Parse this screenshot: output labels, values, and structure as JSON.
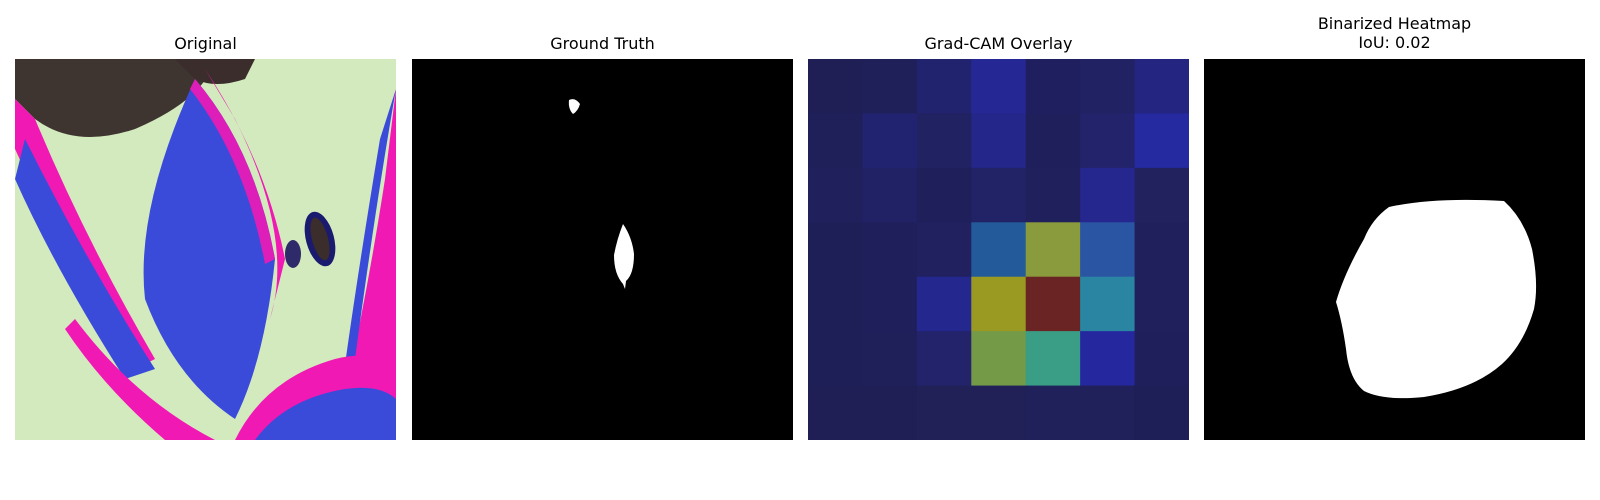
{
  "panels": [
    {
      "id": "original",
      "title": "Original"
    },
    {
      "id": "ground-truth",
      "title": "Ground Truth"
    },
    {
      "id": "gradcam",
      "title": "Grad-CAM Overlay"
    },
    {
      "id": "binarized",
      "title": "Binarized Heatmap",
      "subtitle": "IoU: 0.02"
    }
  ],
  "gradcam_grid": [
    [
      "#1f1f55",
      "#1f1f5a",
      "#22236e",
      "#252794",
      "#1f1f60",
      "#212263",
      "#232580"
    ],
    [
      "#1f1f5a",
      "#222370",
      "#212261",
      "#24268a",
      "#1f1f5c",
      "#22236a",
      "#262aa0"
    ],
    [
      "#20205c",
      "#212266",
      "#1f1f5c",
      "#222266",
      "#20205c",
      "#25278e",
      "#22225f"
    ],
    [
      "#1f1f58",
      "#1f1f5c",
      "#212160",
      "#225a9a",
      "#899b3c",
      "#2a55a3",
      "#20205c"
    ],
    [
      "#1f1f58",
      "#1f1f5c",
      "#24278e",
      "#9a9a22",
      "#6a2424",
      "#2a85a2",
      "#20205c"
    ],
    [
      "#1f1f58",
      "#1f1f5a",
      "#22236a",
      "#749a48",
      "#3a9e86",
      "#25279e",
      "#1f1f5c"
    ],
    [
      "#1f1f55",
      "#1f1f55",
      "#212158",
      "#212158",
      "#20205a",
      "#20205a",
      "#1f1f58"
    ]
  ],
  "colors": {
    "leaf_blue": "#3a4bd9",
    "magenta": "#f019b4",
    "light_green": "#d6edc0",
    "mask_white": "#ffffff",
    "mask_black": "#000000"
  }
}
